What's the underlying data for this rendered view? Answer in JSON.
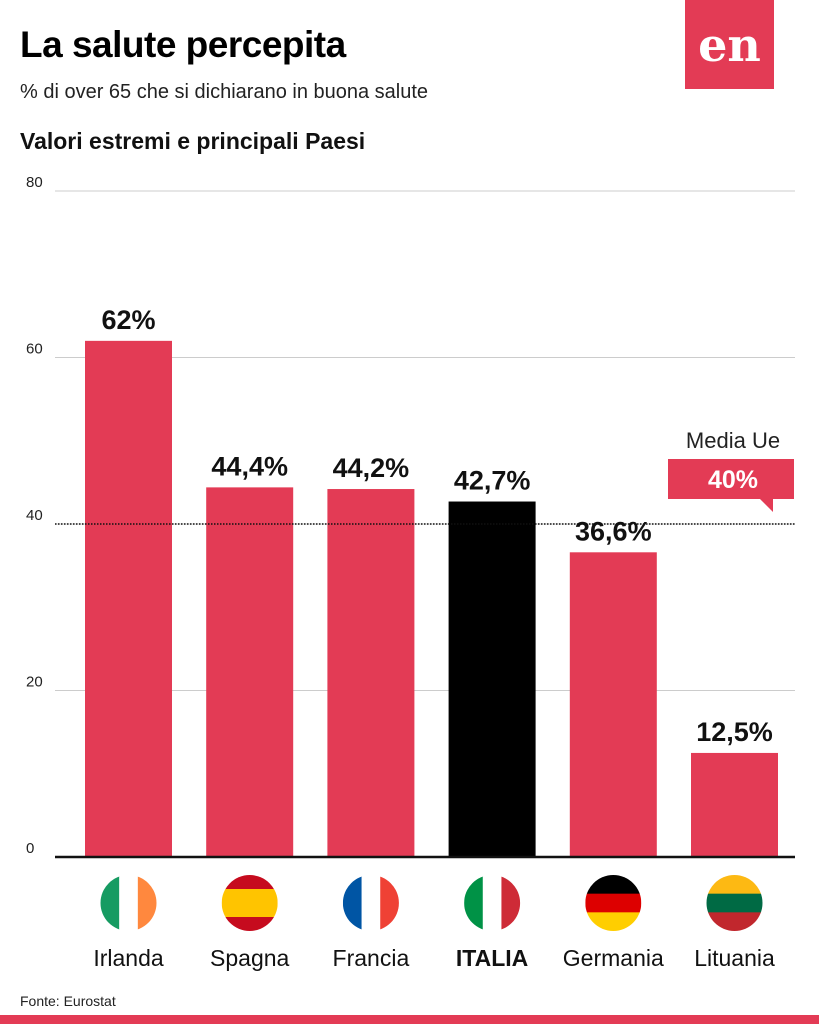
{
  "header": {
    "title": "La salute percepita",
    "subtitle": "% di over 65 che si dichiarano in buona salute",
    "section": "Valori estremi e principali Paesi",
    "logo": "en"
  },
  "footer": {
    "source": "Fonte: Eurostat"
  },
  "colors": {
    "bar": "#e33b55",
    "highlight": "#000000",
    "grid": "#cccccc"
  },
  "chart_data": {
    "type": "bar",
    "title": "La salute percepita",
    "ylim": [
      0,
      80
    ],
    "yticks": [
      0,
      20,
      40,
      60,
      80
    ],
    "ytick_labels": [
      "0",
      "20",
      "40",
      "60",
      "80"
    ],
    "categories": [
      "Irlanda",
      "Spagna",
      "Francia",
      "ITALIA",
      "Germania",
      "Lituania"
    ],
    "values": [
      62,
      44.4,
      44.2,
      42.7,
      36.6,
      12.5
    ],
    "value_labels": [
      "62%",
      "44,4%",
      "44,2%",
      "42,7%",
      "36,6%",
      "12,5%"
    ],
    "highlight": "ITALIA",
    "flags": [
      "ireland-flag",
      "spain-flag",
      "france-flag",
      "italy-flag",
      "germany-flag",
      "lithuania-flag"
    ],
    "reference_line": {
      "label": "Media Ue",
      "value": 40,
      "value_label": "40%"
    }
  }
}
